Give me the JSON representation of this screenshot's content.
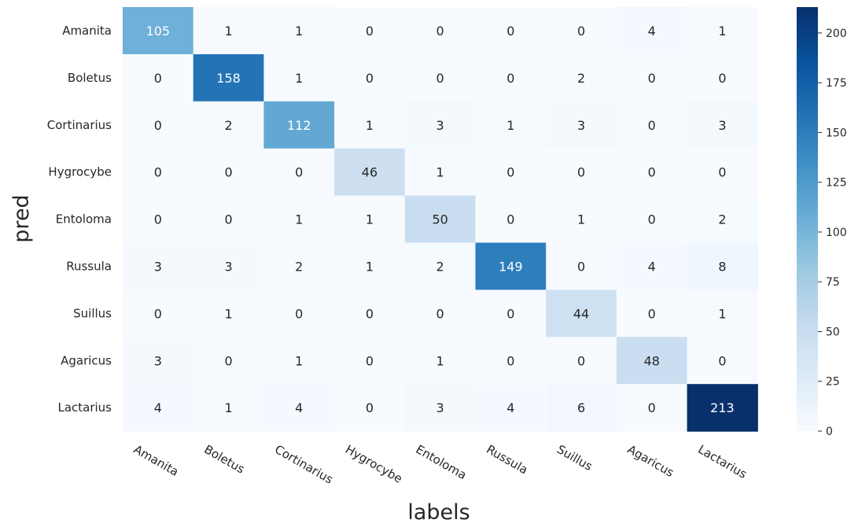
{
  "chart_data": {
    "type": "heatmap",
    "xlabel": "labels",
    "ylabel": "pred",
    "x_categories": [
      "Amanita",
      "Boletus",
      "Cortinarius",
      "Hygrocybe",
      "Entoloma",
      "Russula",
      "Suillus",
      "Agaricus",
      "Lactarius"
    ],
    "y_categories": [
      "Amanita",
      "Boletus",
      "Cortinarius",
      "Hygrocybe",
      "Entoloma",
      "Russula",
      "Suillus",
      "Agaricus",
      "Lactarius"
    ],
    "values": [
      [
        105,
        1,
        1,
        0,
        0,
        0,
        0,
        4,
        1
      ],
      [
        0,
        158,
        1,
        0,
        0,
        0,
        2,
        0,
        0
      ],
      [
        0,
        2,
        112,
        1,
        3,
        1,
        3,
        0,
        3
      ],
      [
        0,
        0,
        0,
        46,
        1,
        0,
        0,
        0,
        0
      ],
      [
        0,
        0,
        1,
        1,
        50,
        0,
        1,
        0,
        2
      ],
      [
        3,
        3,
        2,
        1,
        2,
        149,
        0,
        4,
        8
      ],
      [
        0,
        1,
        0,
        0,
        0,
        0,
        44,
        0,
        1
      ],
      [
        3,
        0,
        1,
        0,
        1,
        0,
        0,
        48,
        0
      ],
      [
        4,
        1,
        4,
        0,
        3,
        4,
        6,
        0,
        213
      ]
    ],
    "colormap": "Blues",
    "color_range": [
      0,
      213
    ],
    "colorbar_ticks": [
      0,
      25,
      50,
      75,
      100,
      125,
      150,
      175,
      200
    ],
    "colorbar": true,
    "x_tick_rotation": 30
  }
}
